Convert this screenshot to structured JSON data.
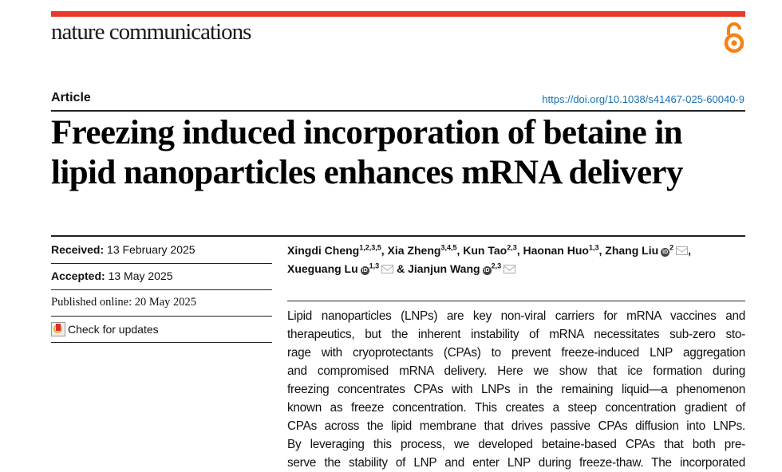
{
  "header": {
    "journal": "nature communications",
    "accent_color": "#e8392a",
    "open_access_icon": "open-access-icon",
    "open_access_color": "#f68212"
  },
  "article_type": "Article",
  "doi": "https://doi.org/10.1038/s41467-025-60040-9",
  "title": [
    "Freezing induced incorporation of betaine in",
    "lipid nanoparticles enhances mRNA delivery"
  ],
  "meta": {
    "received_label": "Received:",
    "received": "13 February 2025",
    "accepted_label": "Accepted:",
    "accepted": "13 May 2025",
    "published": "Published online: 20 May 2025",
    "check_updates": "Check for updates"
  },
  "authors": [
    {
      "name": "Xingdi Cheng",
      "aff": "1,2,3,5"
    },
    {
      "name": "Xia Zheng",
      "aff": "3,4,5"
    },
    {
      "name": "Kun Tao",
      "aff": "2,3"
    },
    {
      "name": "Haonan Huo",
      "aff": "1,3"
    },
    {
      "name": "Zhang Liu",
      "aff": "2"
    },
    {
      "name": "Xueguang Lu",
      "aff": "1,3"
    },
    {
      "name": "Jianjun Wang",
      "aff": "2,3"
    }
  ],
  "abstract_lines": [
    "Lipid nanoparticles (LNPs) are key non-viral carriers for mRNA vaccines and",
    "therapeutics, but the inherent instability of mRNA necessitates sub-zero sto-",
    "rage with cryoprotectants (CPAs) to prevent freeze-induced LNP aggregation",
    "and compromised mRNA delivery. Here we show that ice formation during",
    "freezing concentrates CPAs with LNPs in the remaining liquid—a phenomenon",
    "known as freeze concentration. This creates a steep concentration gradient of",
    "CPAs across the lipid membrane that drives passive CPAs diffusion into LNPs.",
    "By leveraging this process, we developed betaine-based CPAs that both pre-",
    "serve the stability of LNP and enter LNP during freeze-thaw. The incorporated"
  ]
}
